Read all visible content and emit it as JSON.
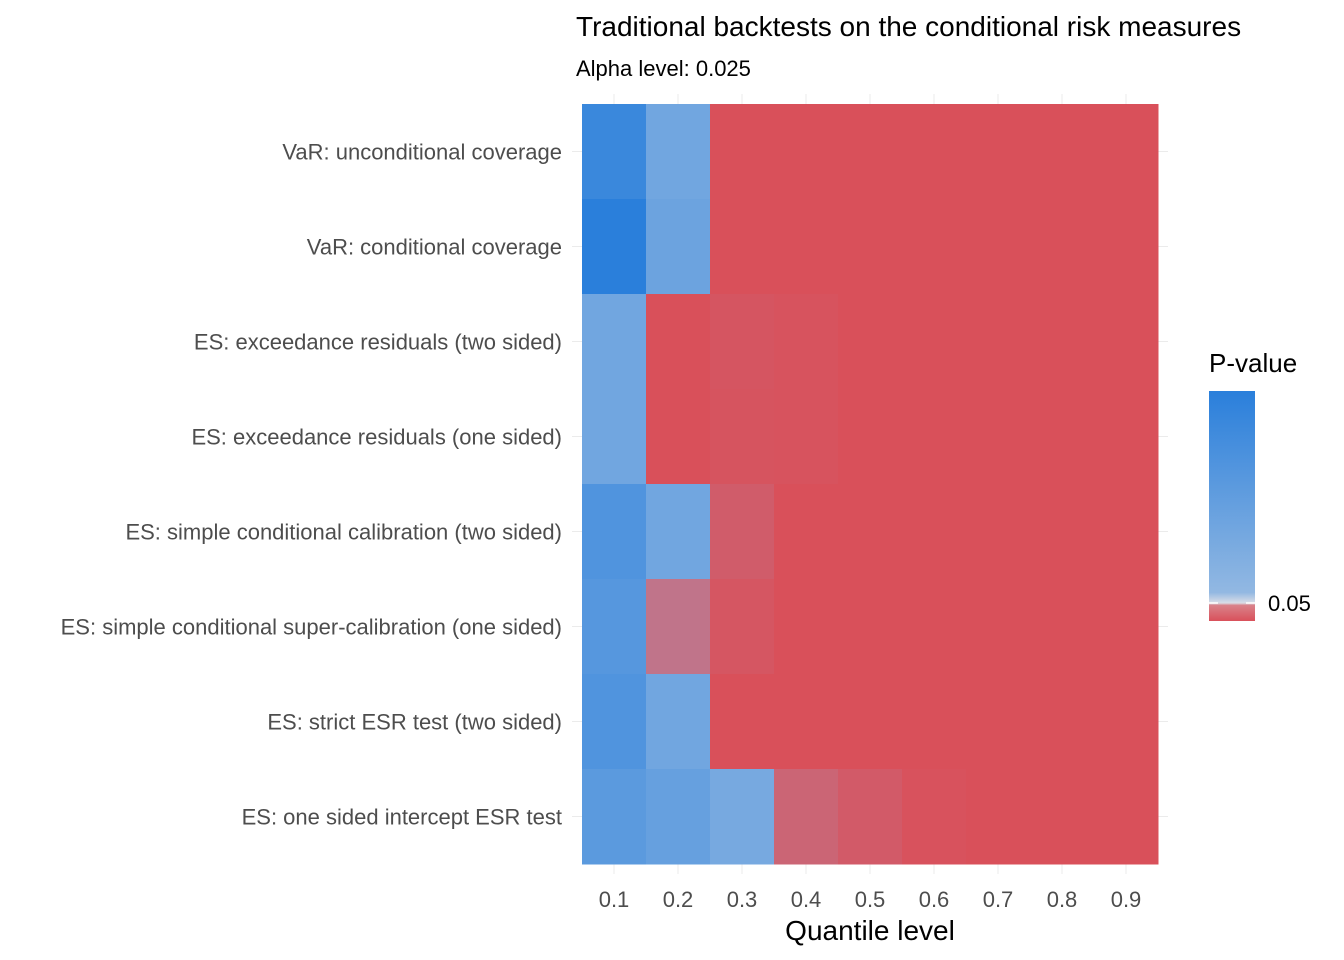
{
  "chart_data": {
    "type": "heatmap",
    "title": "Traditional backtests on the conditional risk measures",
    "subtitle": "Alpha level: 0.025",
    "xlabel": "Quantile level",
    "ylabel": "",
    "x": [
      "0.1",
      "0.2",
      "0.3",
      "0.4",
      "0.5",
      "0.6",
      "0.7",
      "0.8",
      "0.9"
    ],
    "y": [
      "VaR: unconditional coverage",
      "VaR: conditional coverage",
      "ES: exceedance residuals (two sided)",
      "ES: exceedance residuals (one sided)",
      "ES: simple conditional calibration (two sided)",
      "ES: simple conditional super-calibration (one sided)",
      "ES: strict ESR test (two sided)",
      "ES: one sided intercept ESR test"
    ],
    "values": [
      [
        0.85,
        0.35,
        0.0,
        0.0,
        0.0,
        0.0,
        0.0,
        0.0,
        0.0
      ],
      [
        1.0,
        0.4,
        0.0,
        0.0,
        0.0,
        0.0,
        0.0,
        0.0,
        0.0
      ],
      [
        0.35,
        0.0,
        0.005,
        0.003,
        0.0,
        0.0,
        0.0,
        0.0,
        0.0
      ],
      [
        0.35,
        0.0,
        0.004,
        0.003,
        0.0,
        0.0,
        0.0,
        0.0,
        0.0
      ],
      [
        0.65,
        0.35,
        0.012,
        0.0,
        0.0,
        0.0,
        0.0,
        0.0,
        0.0
      ],
      [
        0.6,
        0.035,
        0.006,
        0.0,
        0.0,
        0.0,
        0.0,
        0.0,
        0.0
      ],
      [
        0.65,
        0.35,
        0.0,
        0.0,
        0.0,
        0.0,
        0.0,
        0.0,
        0.0
      ],
      [
        0.55,
        0.45,
        0.3,
        0.02,
        0.01,
        0.002,
        0.0,
        0.0,
        0.0
      ]
    ],
    "threshold": 0.05,
    "legend": {
      "title": "P-value",
      "position": "right",
      "tick_label": "0.05",
      "colors": {
        "high": "#2a7fdb",
        "at_threshold": "#92b8e2",
        "below_threshold": "#d9505a"
      }
    },
    "grid": true
  }
}
